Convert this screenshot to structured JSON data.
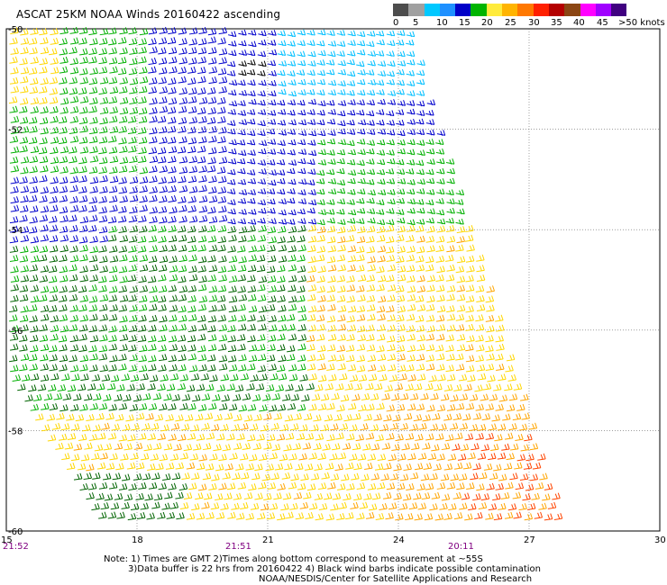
{
  "title": "ASCAT 25KM NOAA Winds 20160422 ascending",
  "legend": {
    "labels": [
      "0",
      "5",
      "10",
      "15",
      "20",
      "25",
      "30",
      "35",
      "40",
      "45",
      ">50 knots"
    ],
    "colors": [
      "#4d4d4d",
      "#a0a0a0",
      "#00c8ff",
      "#1e90ff",
      "#0000c8",
      "#00b400",
      "#ffeb3c",
      "#ffb400",
      "#ff7800",
      "#ff2000",
      "#b40000",
      "#8b4513",
      "#ff00ff",
      "#a000ff",
      "#400080"
    ]
  },
  "axes": {
    "lat_labels": [
      "-50",
      "-52",
      "-54",
      "-56",
      "-58",
      "-60"
    ],
    "lon_labels": [
      "15",
      "18",
      "21",
      "24",
      "27",
      "30"
    ],
    "time_labels": [
      "21:52",
      "21:51",
      "20:11"
    ]
  },
  "notes": {
    "line1": "Note: 1) Times are GMT 2)Times along bottom correspond to measurement at ~55S",
    "line2": "3)Data buffer is 22 hrs from 20160422 4) Black wind barbs indicate possible contamination",
    "line3": "NOAA/NESDIS/Center for Satellite Applications and Research"
  },
  "wind_colors": {
    "calm": "#000000",
    "light_blue": "#00bfff",
    "blue": "#0000cd",
    "green": "#00b000",
    "dark_green": "#006400",
    "yellow": "#ffd700",
    "orange": "#ffa500",
    "red_orange": "#ff4500"
  }
}
